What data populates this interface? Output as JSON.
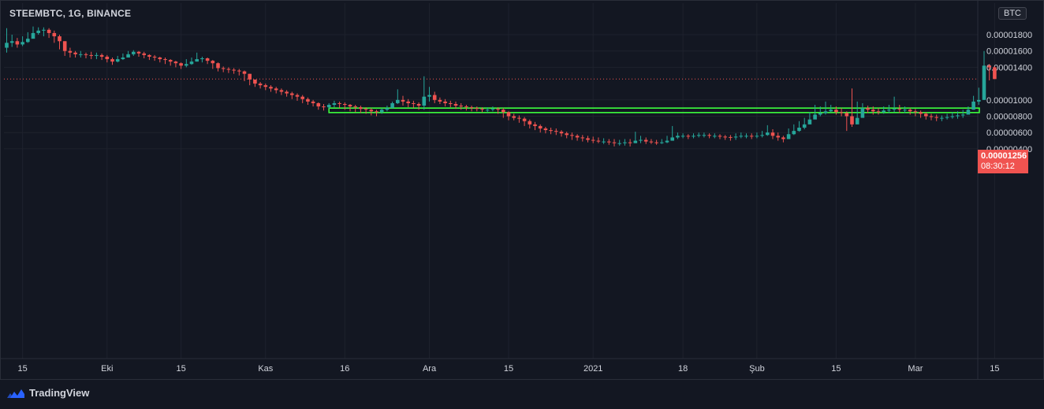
{
  "header": {
    "title": "STEEMBTC, 1G, BINANCE",
    "currency": "BTC"
  },
  "price_tag": {
    "price": "0.00001256",
    "countdown": "08:30:12"
  },
  "footer": {
    "brand": "TradingView"
  },
  "colors": {
    "background": "#131722",
    "grid": "#1e222d",
    "up": "#26a69a",
    "down": "#ef5350",
    "zone": "#3dff3d",
    "axis_text": "#d1d4dc"
  },
  "chart_data": {
    "type": "candlestick",
    "y_ticks": [
      "0.00001800",
      "0.00001600",
      "0.00001400",
      "0.00001000",
      "0.00000800",
      "0.00000600",
      "0.00000400"
    ],
    "y_tick_values": [
      1800,
      1600,
      1400,
      1000,
      800,
      600,
      400
    ],
    "x_ticks": [
      "15",
      "Eki",
      "15",
      "Kas",
      "16",
      "Ara",
      "15",
      "2021",
      "18",
      "Şub",
      "15",
      "Mar",
      "15"
    ],
    "x_tick_days": [
      3,
      19,
      33,
      49,
      64,
      80,
      95,
      111,
      128,
      142,
      157,
      172,
      187
    ],
    "units": "price in 1e-8 BTC (satoshi); x in days from first candle",
    "ylim": [
      360,
      1920
    ],
    "last_price": 1256,
    "support_zone": {
      "low": 845,
      "high": 900,
      "start_day": 61
    },
    "close": [
      1700,
      1720,
      1680,
      1710,
      1750,
      1820,
      1850,
      1860,
      1820,
      1780,
      1720,
      1600,
      1580,
      1560,
      1560,
      1550,
      1540,
      1550,
      1530,
      1500,
      1470,
      1500,
      1520,
      1560,
      1590,
      1570,
      1550,
      1530,
      1520,
      1500,
      1490,
      1470,
      1450,
      1420,
      1440,
      1470,
      1500,
      1510,
      1480,
      1450,
      1390,
      1380,
      1370,
      1360,
      1350,
      1320,
      1250,
      1200,
      1180,
      1160,
      1140,
      1120,
      1100,
      1080,
      1060,
      1040,
      1010,
      980,
      960,
      920,
      910,
      940,
      960,
      950,
      940,
      920,
      910,
      890,
      880,
      860,
      850,
      880,
      900,
      960,
      1000,
      980,
      960,
      950,
      930,
      1040,
      1060,
      1000,
      980,
      960,
      950,
      930,
      920,
      910,
      900,
      890,
      880,
      880,
      890,
      880,
      850,
      800,
      780,
      770,
      740,
      700,
      680,
      650,
      630,
      620,
      610,
      590,
      570,
      560,
      540,
      530,
      510,
      500,
      490,
      490,
      480,
      470,
      470,
      480,
      470,
      500,
      510,
      490,
      480,
      470,
      480,
      500,
      540,
      560,
      560,
      555,
      560,
      570,
      570,
      560,
      560,
      550,
      545,
      540,
      550,
      560,
      560,
      555,
      560,
      570,
      600,
      560,
      540,
      520,
      580,
      620,
      660,
      700,
      760,
      820,
      840,
      860,
      880,
      850,
      840,
      800,
      700,
      780,
      900,
      880,
      860,
      850,
      870,
      880,
      890,
      880,
      880,
      860,
      850,
      830,
      800,
      790,
      780,
      780,
      790,
      800,
      810,
      820,
      880,
      980,
      1000,
      1420,
      1400,
      1256
    ],
    "high": [
      1880,
      1800,
      1760,
      1780,
      1830,
      1900,
      1890,
      1890,
      1880,
      1850,
      1800,
      1720,
      1640,
      1600,
      1600,
      1580,
      1590,
      1580,
      1570,
      1550,
      1520,
      1540,
      1570,
      1600,
      1610,
      1600,
      1590,
      1560,
      1550,
      1530,
      1520,
      1500,
      1480,
      1460,
      1500,
      1520,
      1580,
      1530,
      1520,
      1490,
      1460,
      1410,
      1400,
      1390,
      1380,
      1360,
      1320,
      1250,
      1220,
      1200,
      1180,
      1160,
      1140,
      1120,
      1100,
      1080,
      1060,
      1030,
      1000,
      970,
      950,
      960,
      990,
      980,
      970,
      950,
      940,
      930,
      910,
      900,
      880,
      900,
      930,
      980,
      1130,
      1050,
      1010,
      990,
      970,
      1290,
      1160,
      1100,
      1030,
      1010,
      990,
      980,
      960,
      940,
      930,
      920,
      910,
      910,
      920,
      910,
      900,
      860,
      830,
      810,
      790,
      760,
      730,
      700,
      670,
      660,
      650,
      630,
      610,
      600,
      580,
      570,
      560,
      550,
      540,
      530,
      520,
      520,
      510,
      520,
      520,
      610,
      560,
      540,
      520,
      510,
      520,
      560,
      680,
      600,
      590,
      580,
      590,
      600,
      600,
      590,
      590,
      580,
      570,
      570,
      590,
      600,
      590,
      590,
      600,
      620,
      690,
      640,
      600,
      560,
      650,
      700,
      740,
      780,
      850,
      940,
      920,
      980,
      940,
      920,
      900,
      860,
      1140,
      980,
      960,
      930,
      920,
      900,
      920,
      940,
      1040,
      940,
      920,
      900,
      890,
      870,
      850,
      830,
      820,
      810,
      830,
      850,
      860,
      880,
      920,
      1050,
      1150,
      1600,
      1440,
      1410
    ],
    "low": [
      1580,
      1650,
      1640,
      1660,
      1700,
      1760,
      1800,
      1780,
      1760,
      1700,
      1620,
      1540,
      1520,
      1520,
      1520,
      1510,
      1500,
      1500,
      1490,
      1460,
      1430,
      1460,
      1490,
      1520,
      1540,
      1530,
      1510,
      1490,
      1480,
      1460,
      1440,
      1420,
      1400,
      1380,
      1400,
      1430,
      1470,
      1460,
      1440,
      1380,
      1350,
      1340,
      1330,
      1320,
      1300,
      1230,
      1180,
      1160,
      1140,
      1120,
      1100,
      1080,
      1060,
      1040,
      1010,
      990,
      960,
      940,
      920,
      880,
      870,
      890,
      910,
      900,
      880,
      860,
      850,
      840,
      830,
      810,
      800,
      830,
      860,
      900,
      950,
      930,
      910,
      900,
      880,
      880,
      980,
      960,
      950,
      920,
      910,
      890,
      880,
      870,
      860,
      860,
      850,
      850,
      860,
      830,
      780,
      750,
      750,
      720,
      680,
      650,
      630,
      600,
      590,
      580,
      570,
      550,
      530,
      510,
      500,
      490,
      480,
      470,
      470,
      460,
      450,
      430,
      440,
      440,
      430,
      470,
      470,
      460,
      460,
      450,
      460,
      470,
      500,
      520,
      530,
      520,
      530,
      540,
      540,
      530,
      530,
      520,
      510,
      500,
      510,
      530,
      530,
      520,
      530,
      540,
      560,
      520,
      500,
      480,
      530,
      570,
      610,
      640,
      720,
      780,
      800,
      820,
      850,
      820,
      800,
      620,
      670,
      720,
      800,
      840,
      820,
      820,
      830,
      840,
      850,
      840,
      840,
      820,
      800,
      780,
      760,
      750,
      740,
      740,
      760,
      770,
      770,
      780,
      840,
      880,
      940,
      1000,
      1240,
      1256
    ]
  }
}
